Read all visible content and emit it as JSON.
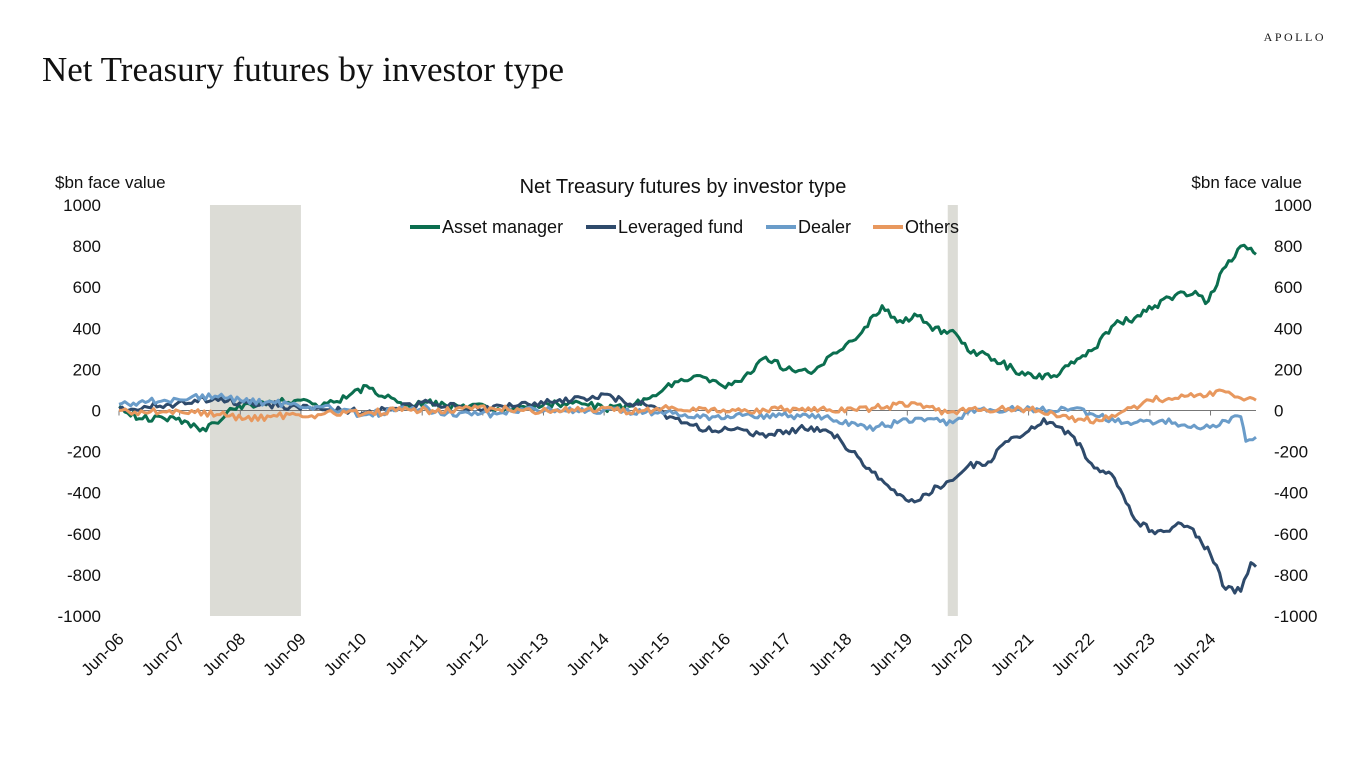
{
  "header": {
    "brand": "APOLLO",
    "title": "Net Treasury futures by investor type"
  },
  "chart_data": {
    "type": "line",
    "title": "Net Treasury futures by investor type",
    "ylabel_left": "$bn face value",
    "ylabel_right": "$bn face value",
    "xlabel": "",
    "ylim": [
      -1000,
      1000
    ],
    "yticks": [
      1000,
      800,
      600,
      400,
      200,
      0,
      -200,
      -400,
      -600,
      -800,
      -1000
    ],
    "x_ticks": [
      "Jun-06",
      "Jun-07",
      "Jun-08",
      "Jun-09",
      "Jun-10",
      "Jun-11",
      "Jun-12",
      "Jun-13",
      "Jun-14",
      "Jun-15",
      "Jun-16",
      "Jun-17",
      "Jun-18",
      "Jun-19",
      "Jun-20",
      "Jun-21",
      "Jun-22",
      "Jun-23",
      "Jun-24"
    ],
    "x_range": [
      "2006-06",
      "2025-03"
    ],
    "recessions": [
      {
        "start": "2007-12",
        "end": "2009-06"
      },
      {
        "start": "2020-02",
        "end": "2020-04"
      }
    ],
    "legend_position": "top-center",
    "grid": false,
    "series": [
      {
        "name": "Asset manager",
        "color": "#0b6e4f",
        "points": [
          [
            "2006-06",
            20
          ],
          [
            "2006-10",
            -40
          ],
          [
            "2007-03",
            -40
          ],
          [
            "2007-07",
            -50
          ],
          [
            "2007-10",
            -100
          ],
          [
            "2008-01",
            -60
          ],
          [
            "2008-04",
            10
          ],
          [
            "2008-08",
            30
          ],
          [
            "2009-01",
            40
          ],
          [
            "2009-06",
            50
          ],
          [
            "2009-10",
            20
          ],
          [
            "2010-03",
            60
          ],
          [
            "2010-07",
            120
          ],
          [
            "2010-10",
            70
          ],
          [
            "2011-03",
            30
          ],
          [
            "2011-07",
            40
          ],
          [
            "2011-11",
            20
          ],
          [
            "2012-04",
            30
          ],
          [
            "2012-09",
            10
          ],
          [
            "2013-02",
            20
          ],
          [
            "2013-07",
            30
          ],
          [
            "2014-01",
            40
          ],
          [
            "2014-06",
            10
          ],
          [
            "2014-11",
            20
          ],
          [
            "2015-03",
            60
          ],
          [
            "2015-08",
            140
          ],
          [
            "2016-01",
            170
          ],
          [
            "2016-06",
            110
          ],
          [
            "2016-11",
            180
          ],
          [
            "2017-02",
            260
          ],
          [
            "2017-06",
            200
          ],
          [
            "2017-11",
            180
          ],
          [
            "2018-04",
            280
          ],
          [
            "2018-09",
            380
          ],
          [
            "2019-01",
            510
          ],
          [
            "2019-04",
            430
          ],
          [
            "2019-08",
            460
          ],
          [
            "2019-11",
            390
          ],
          [
            "2020-03",
            390
          ],
          [
            "2020-06",
            290
          ],
          [
            "2020-10",
            270
          ],
          [
            "2021-03",
            200
          ],
          [
            "2021-07",
            160
          ],
          [
            "2021-11",
            170
          ],
          [
            "2022-03",
            230
          ],
          [
            "2022-07",
            300
          ],
          [
            "2022-11",
            420
          ],
          [
            "2023-03",
            450
          ],
          [
            "2023-07",
            510
          ],
          [
            "2023-11",
            560
          ],
          [
            "2024-03",
            580
          ],
          [
            "2024-05",
            520
          ],
          [
            "2024-09",
            700
          ],
          [
            "2024-12",
            800
          ],
          [
            "2025-02",
            790
          ],
          [
            "2025-03",
            760
          ]
        ]
      },
      {
        "name": "Leveraged fund",
        "color": "#2e4a6b",
        "points": [
          [
            "2006-06",
            10
          ],
          [
            "2006-11",
            20
          ],
          [
            "2007-04",
            30
          ],
          [
            "2007-09",
            50
          ],
          [
            "2008-01",
            60
          ],
          [
            "2008-06",
            40
          ],
          [
            "2008-11",
            30
          ],
          [
            "2009-04",
            20
          ],
          [
            "2009-09",
            10
          ],
          [
            "2010-02",
            0
          ],
          [
            "2010-07",
            -10
          ],
          [
            "2011-01",
            10
          ],
          [
            "2011-06",
            40
          ],
          [
            "2011-11",
            20
          ],
          [
            "2012-05",
            10
          ],
          [
            "2012-10",
            20
          ],
          [
            "2013-03",
            30
          ],
          [
            "2013-08",
            40
          ],
          [
            "2014-02",
            60
          ],
          [
            "2014-06",
            80
          ],
          [
            "2014-10",
            40
          ],
          [
            "2015-02",
            30
          ],
          [
            "2015-07",
            -30
          ],
          [
            "2015-11",
            -70
          ],
          [
            "2016-04",
            -100
          ],
          [
            "2016-09",
            -90
          ],
          [
            "2017-02",
            -130
          ],
          [
            "2017-06",
            -100
          ],
          [
            "2017-11",
            -80
          ],
          [
            "2018-03",
            -110
          ],
          [
            "2018-07",
            -200
          ],
          [
            "2018-11",
            -300
          ],
          [
            "2019-04",
            -410
          ],
          [
            "2019-08",
            -440
          ],
          [
            "2019-12",
            -370
          ],
          [
            "2020-03",
            -340
          ],
          [
            "2020-06",
            -270
          ],
          [
            "2020-10",
            -250
          ],
          [
            "2021-02",
            -150
          ],
          [
            "2021-06",
            -100
          ],
          [
            "2021-09",
            -40
          ],
          [
            "2021-12",
            -80
          ],
          [
            "2022-03",
            -130
          ],
          [
            "2022-07",
            -280
          ],
          [
            "2022-11",
            -330
          ],
          [
            "2023-03",
            -530
          ],
          [
            "2023-07",
            -600
          ],
          [
            "2023-11",
            -560
          ],
          [
            "2024-02",
            -570
          ],
          [
            "2024-06",
            -700
          ],
          [
            "2024-09",
            -870
          ],
          [
            "2024-12",
            -880
          ],
          [
            "2025-02",
            -740
          ],
          [
            "2025-03",
            -760
          ]
        ]
      },
      {
        "name": "Dealer",
        "color": "#6a9cc9",
        "points": [
          [
            "2006-06",
            30
          ],
          [
            "2006-10",
            40
          ],
          [
            "2007-03",
            50
          ],
          [
            "2007-08",
            60
          ],
          [
            "2008-01",
            70
          ],
          [
            "2008-06",
            50
          ],
          [
            "2008-11",
            40
          ],
          [
            "2009-04",
            30
          ],
          [
            "2009-09",
            20
          ],
          [
            "2010-02",
            0
          ],
          [
            "2010-07",
            -20
          ],
          [
            "2011-01",
            0
          ],
          [
            "2011-06",
            10
          ],
          [
            "2011-11",
            -10
          ],
          [
            "2012-05",
            -20
          ],
          [
            "2012-10",
            -10
          ],
          [
            "2013-04",
            10
          ],
          [
            "2013-10",
            0
          ],
          [
            "2014-04",
            -10
          ],
          [
            "2014-10",
            0
          ],
          [
            "2015-04",
            -10
          ],
          [
            "2015-10",
            -20
          ],
          [
            "2016-04",
            -30
          ],
          [
            "2016-10",
            -20
          ],
          [
            "2017-04",
            -30
          ],
          [
            "2017-10",
            -20
          ],
          [
            "2018-04",
            -50
          ],
          [
            "2018-10",
            -90
          ],
          [
            "2019-04",
            -60
          ],
          [
            "2019-10",
            -40
          ],
          [
            "2020-03",
            -60
          ],
          [
            "2020-06",
            -10
          ],
          [
            "2020-11",
            0
          ],
          [
            "2021-04",
            10
          ],
          [
            "2021-10",
            0
          ],
          [
            "2022-03",
            10
          ],
          [
            "2022-08",
            -30
          ],
          [
            "2023-01",
            -60
          ],
          [
            "2023-06",
            -50
          ],
          [
            "2023-11",
            -60
          ],
          [
            "2024-04",
            -90
          ],
          [
            "2024-09",
            -50
          ],
          [
            "2024-12",
            -30
          ],
          [
            "2025-01",
            -150
          ],
          [
            "2025-03",
            -130
          ]
        ]
      },
      {
        "name": "Others",
        "color": "#e8985e",
        "points": [
          [
            "2006-06",
            0
          ],
          [
            "2006-11",
            -10
          ],
          [
            "2007-04",
            0
          ],
          [
            "2007-09",
            -10
          ],
          [
            "2008-02",
            -20
          ],
          [
            "2008-07",
            -40
          ],
          [
            "2008-12",
            -30
          ],
          [
            "2009-05",
            -20
          ],
          [
            "2009-10",
            -20
          ],
          [
            "2010-03",
            -10
          ],
          [
            "2010-08",
            -10
          ],
          [
            "2011-02",
            0
          ],
          [
            "2011-08",
            0
          ],
          [
            "2012-02",
            10
          ],
          [
            "2012-08",
            10
          ],
          [
            "2013-02",
            0
          ],
          [
            "2013-08",
            0
          ],
          [
            "2014-02",
            0
          ],
          [
            "2014-08",
            0
          ],
          [
            "2015-02",
            0
          ],
          [
            "2015-08",
            10
          ],
          [
            "2016-02",
            10
          ],
          [
            "2016-08",
            0
          ],
          [
            "2017-02",
            0
          ],
          [
            "2017-08",
            10
          ],
          [
            "2018-02",
            0
          ],
          [
            "2018-08",
            0
          ],
          [
            "2019-02",
            20
          ],
          [
            "2019-08",
            30
          ],
          [
            "2020-02",
            -10
          ],
          [
            "2020-08",
            0
          ],
          [
            "2021-02",
            10
          ],
          [
            "2021-08",
            0
          ],
          [
            "2022-02",
            -40
          ],
          [
            "2022-08",
            -50
          ],
          [
            "2023-01",
            0
          ],
          [
            "2023-06",
            50
          ],
          [
            "2023-11",
            60
          ],
          [
            "2024-04",
            80
          ],
          [
            "2024-09",
            90
          ],
          [
            "2024-12",
            60
          ],
          [
            "2025-03",
            50
          ]
        ]
      }
    ]
  }
}
